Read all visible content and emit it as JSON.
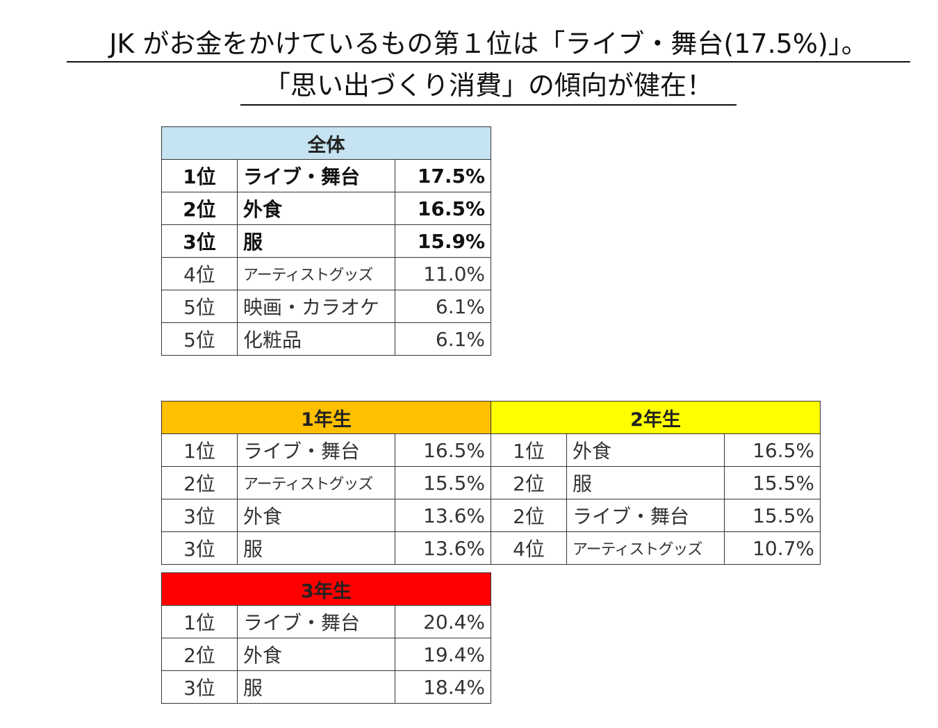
{
  "title": {
    "line1": "JK がお金をかけているもの第１位は「ライブ・舞台(17.5%)」。",
    "line2": "「思い出づくり消費」の傾向が健在！"
  },
  "colors": {
    "overall_header": "#c5e3f0",
    "grade1_header": "#ffc000",
    "grade2_header": "#ffff00",
    "grade3_header": "#ff0000"
  },
  "overall": {
    "header": "全体",
    "rows": [
      {
        "rank": "1位",
        "item": "ライブ・舞台",
        "percent": "17.5%"
      },
      {
        "rank": "2位",
        "item": "外食",
        "percent": "16.5%"
      },
      {
        "rank": "3位",
        "item": "服",
        "percent": "15.9%"
      },
      {
        "rank": "4位",
        "item": "アーティストグッズ",
        "percent": "11.0%"
      },
      {
        "rank": "5位",
        "item": "映画・カラオケ",
        "percent": "6.1%"
      },
      {
        "rank": "5位",
        "item": "化粧品",
        "percent": "6.1%"
      }
    ]
  },
  "grade1": {
    "header": "1年生",
    "rows": [
      {
        "rank": "1位",
        "item": "ライブ・舞台",
        "percent": "16.5%"
      },
      {
        "rank": "2位",
        "item": "アーティストグッズ",
        "percent": "15.5%"
      },
      {
        "rank": "3位",
        "item": "外食",
        "percent": "13.6%"
      },
      {
        "rank": "3位",
        "item": "服",
        "percent": "13.6%"
      }
    ]
  },
  "grade2": {
    "header": "2年生",
    "rows": [
      {
        "rank": "1位",
        "item": "外食",
        "percent": "16.5%"
      },
      {
        "rank": "2位",
        "item": "服",
        "percent": "15.5%"
      },
      {
        "rank": "2位",
        "item": "ライブ・舞台",
        "percent": "15.5%"
      },
      {
        "rank": "4位",
        "item": "アーティストグッズ",
        "percent": "10.7%"
      }
    ]
  },
  "grade3": {
    "header": "3年生",
    "rows": [
      {
        "rank": "1位",
        "item": "ライブ・舞台",
        "percent": "20.4%"
      },
      {
        "rank": "2位",
        "item": "外食",
        "percent": "19.4%"
      },
      {
        "rank": "3位",
        "item": "服",
        "percent": "18.4%"
      }
    ]
  }
}
